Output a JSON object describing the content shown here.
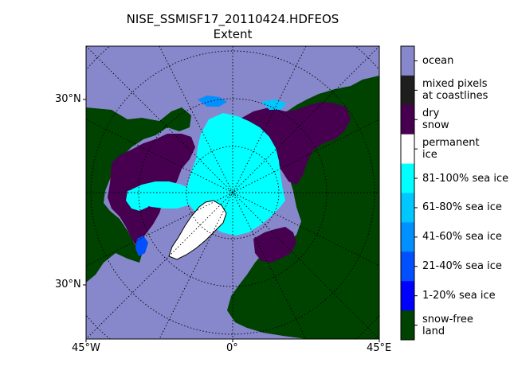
{
  "title": {
    "line1": "NISE_SSMISF17_20110424.HDFEOS",
    "line2": "Extent"
  },
  "axes": {
    "left_labels": [
      "30°N",
      "30°N"
    ],
    "bottom_labels": [
      "45°W",
      "0°",
      "45°E"
    ]
  },
  "colors": {
    "ocean": "#8787cb",
    "mixed_pixels": "#1e1e1e",
    "dry_snow": "#46004f",
    "permanent_ice": "#ffffff",
    "sea_ice_81_100": "#00ffff",
    "sea_ice_61_80": "#00c8ff",
    "sea_ice_41_60": "#0090ff",
    "sea_ice_21_40": "#0050ff",
    "sea_ice_1_20": "#0000ff",
    "snow_free_land": "#004200"
  },
  "colorbar": {
    "entries": [
      {
        "lines": [
          "ocean"
        ],
        "color_key": "ocean"
      },
      {
        "lines": [
          "mixed pixels",
          "at coastlines"
        ],
        "color_key": "mixed_pixels"
      },
      {
        "lines": [
          "dry",
          "snow"
        ],
        "color_key": "dry_snow"
      },
      {
        "lines": [
          "permanent",
          "ice"
        ],
        "color_key": "permanent_ice"
      },
      {
        "lines": [
          "81-100% sea ice"
        ],
        "color_key": "sea_ice_81_100"
      },
      {
        "lines": [
          "61-80% sea ice"
        ],
        "color_key": "sea_ice_61_80"
      },
      {
        "lines": [
          "41-60% sea ice"
        ],
        "color_key": "sea_ice_41_60"
      },
      {
        "lines": [
          "21-40% sea ice"
        ],
        "color_key": "sea_ice_21_40"
      },
      {
        "lines": [
          "1-20% sea ice"
        ],
        "color_key": "sea_ice_1_20"
      },
      {
        "lines": [
          "snow-free",
          "land"
        ],
        "color_key": "snow_free_land"
      }
    ]
  }
}
